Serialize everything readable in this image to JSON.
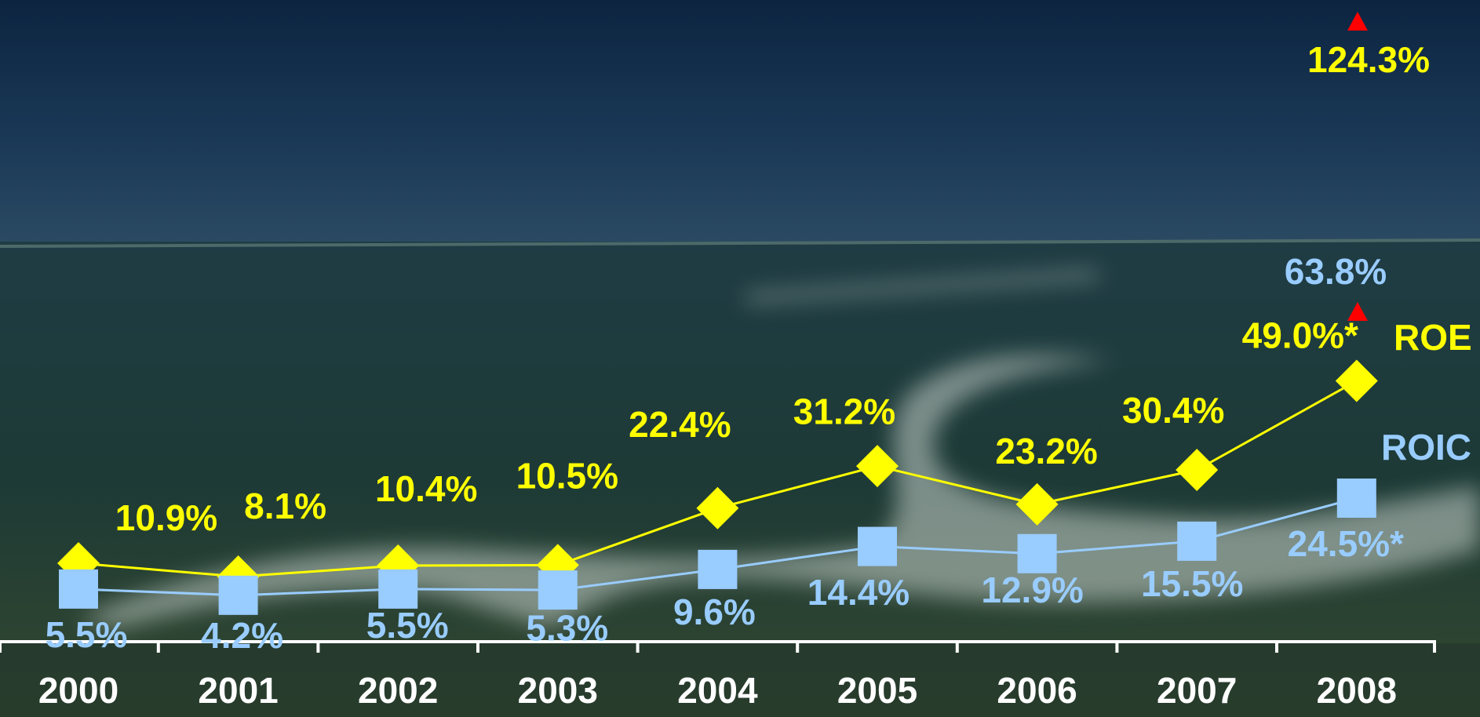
{
  "chart_data": {
    "type": "line",
    "categories": [
      "2000",
      "2001",
      "2002",
      "2003",
      "2004",
      "2005",
      "2006",
      "2007",
      "2008"
    ],
    "series": [
      {
        "name": "ROE",
        "color": "#ffff00",
        "values": [
          10.9,
          8.1,
          10.4,
          10.5,
          22.4,
          31.2,
          23.2,
          30.4,
          49.0
        ],
        "value_labels": [
          "10.9%",
          "8.1%",
          "10.4%",
          "10.5%",
          "22.4%",
          "31.2%",
          "23.2%",
          "30.4%",
          "49.0%*"
        ]
      },
      {
        "name": "ROIC",
        "color": "#99ccff",
        "values": [
          5.5,
          4.2,
          5.5,
          5.3,
          9.6,
          14.4,
          12.9,
          15.5,
          24.5
        ],
        "value_labels": [
          "5.5%",
          "4.2%",
          "5.5%",
          "5.3%",
          "9.6%",
          "14.4%",
          "12.9%",
          "15.5%",
          "24.5%*"
        ]
      }
    ],
    "annotations": [
      {
        "text": "124.3%",
        "color": "#ffff00"
      },
      {
        "text": "63.8%",
        "color": "#99ccff"
      }
    ],
    "ylim": [
      -5.5,
      128.6
    ]
  }
}
